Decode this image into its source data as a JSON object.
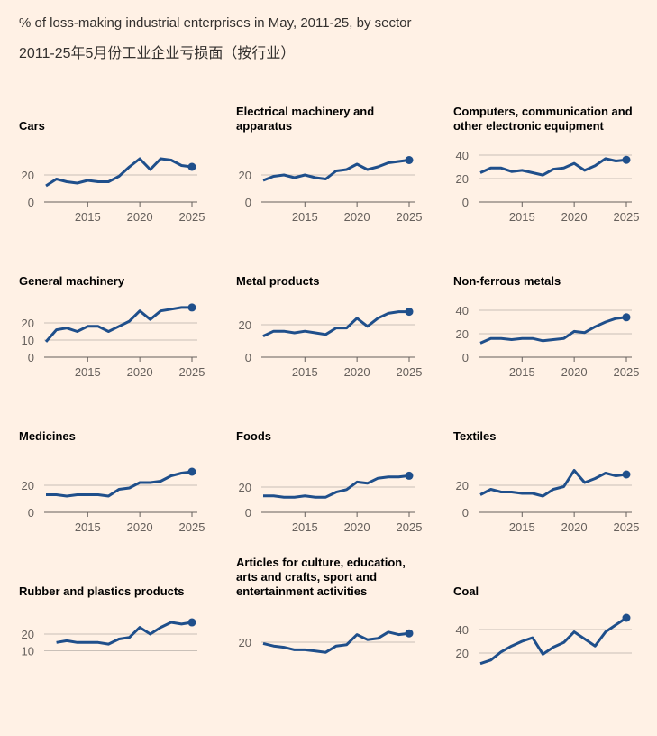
{
  "header": {
    "title": "% of loss-making industrial enterprises in May, 2011-25, by sector",
    "subtitle": "2011-25年5月份工业企业亏损面（按行业）"
  },
  "style": {
    "line_color": "#1f4f8b",
    "grid_color": "#c9c0b8",
    "background": "#fff1e5"
  },
  "chart_data": [
    {
      "type": "line",
      "title": "Cars",
      "x": [
        2011,
        2012,
        2013,
        2014,
        2015,
        2016,
        2017,
        2018,
        2019,
        2020,
        2021,
        2022,
        2023,
        2024,
        2025
      ],
      "y": [
        12,
        17,
        15,
        14,
        16,
        15,
        15,
        19,
        26,
        32,
        24,
        32,
        31,
        27,
        26
      ],
      "yticks": [
        0,
        20
      ],
      "xticks": [
        2015,
        2020,
        2025
      ]
    },
    {
      "type": "line",
      "title": "Electrical machinery and apparatus",
      "x": [
        2011,
        2012,
        2013,
        2014,
        2015,
        2016,
        2017,
        2018,
        2019,
        2020,
        2021,
        2022,
        2023,
        2024,
        2025
      ],
      "y": [
        16,
        19,
        20,
        18,
        20,
        18,
        17,
        23,
        24,
        28,
        24,
        26,
        29,
        30,
        31
      ],
      "yticks": [
        0,
        20
      ],
      "xticks": [
        2015,
        2020,
        2025
      ]
    },
    {
      "type": "line",
      "title": "Computers, communication and other electronic equipment",
      "x": [
        2011,
        2012,
        2013,
        2014,
        2015,
        2016,
        2017,
        2018,
        2019,
        2020,
        2021,
        2022,
        2023,
        2024,
        2025
      ],
      "y": [
        25,
        29,
        29,
        26,
        27,
        25,
        23,
        28,
        29,
        33,
        27,
        31,
        37,
        35,
        36
      ],
      "yticks": [
        0,
        20,
        40
      ],
      "xticks": [
        2015,
        2020,
        2025
      ]
    },
    {
      "type": "line",
      "title": "General machinery",
      "x": [
        2011,
        2012,
        2013,
        2014,
        2015,
        2016,
        2017,
        2018,
        2019,
        2020,
        2021,
        2022,
        2023,
        2024,
        2025
      ],
      "y": [
        9,
        16,
        17,
        15,
        18,
        18,
        15,
        18,
        21,
        27,
        22,
        27,
        28,
        29,
        29
      ],
      "yticks": [
        0,
        10,
        20
      ],
      "xticks": [
        2015,
        2020,
        2025
      ]
    },
    {
      "type": "line",
      "title": "Metal products",
      "x": [
        2011,
        2012,
        2013,
        2014,
        2015,
        2016,
        2017,
        2018,
        2019,
        2020,
        2021,
        2022,
        2023,
        2024,
        2025
      ],
      "y": [
        13,
        16,
        16,
        15,
        16,
        15,
        14,
        18,
        18,
        24,
        19,
        24,
        27,
        28,
        28
      ],
      "yticks": [
        0,
        20
      ],
      "xticks": [
        2015,
        2020,
        2025
      ]
    },
    {
      "type": "line",
      "title": "Non-ferrous metals",
      "x": [
        2011,
        2012,
        2013,
        2014,
        2015,
        2016,
        2017,
        2018,
        2019,
        2020,
        2021,
        2022,
        2023,
        2024,
        2025
      ],
      "y": [
        12,
        16,
        16,
        15,
        16,
        16,
        14,
        15,
        16,
        22,
        21,
        26,
        30,
        33,
        34
      ],
      "yticks": [
        0,
        20,
        40
      ],
      "xticks": [
        2015,
        2020,
        2025
      ]
    },
    {
      "type": "line",
      "title": "Medicines",
      "x": [
        2011,
        2012,
        2013,
        2014,
        2015,
        2016,
        2017,
        2018,
        2019,
        2020,
        2021,
        2022,
        2023,
        2024,
        2025
      ],
      "y": [
        13,
        13,
        12,
        13,
        13,
        13,
        12,
        17,
        18,
        22,
        22,
        23,
        27,
        29,
        30
      ],
      "yticks": [
        0,
        20
      ],
      "xticks": [
        2015,
        2020,
        2025
      ]
    },
    {
      "type": "line",
      "title": "Foods",
      "x": [
        2011,
        2012,
        2013,
        2014,
        2015,
        2016,
        2017,
        2018,
        2019,
        2020,
        2021,
        2022,
        2023,
        2024,
        2025
      ],
      "y": [
        13,
        13,
        12,
        12,
        13,
        12,
        12,
        16,
        18,
        24,
        23,
        27,
        28,
        28,
        29
      ],
      "yticks": [
        0,
        20
      ],
      "xticks": [
        2015,
        2020,
        2025
      ]
    },
    {
      "type": "line",
      "title": "Textiles",
      "x": [
        2011,
        2012,
        2013,
        2014,
        2015,
        2016,
        2017,
        2018,
        2019,
        2020,
        2021,
        2022,
        2023,
        2024,
        2025
      ],
      "y": [
        13,
        17,
        15,
        15,
        14,
        14,
        12,
        17,
        19,
        31,
        22,
        25,
        29,
        27,
        28
      ],
      "yticks": [
        0,
        20
      ],
      "xticks": [
        2015,
        2020,
        2025
      ]
    },
    {
      "type": "line",
      "title": "Rubber and plastics products",
      "x": [
        2012,
        2013,
        2014,
        2015,
        2016,
        2017,
        2018,
        2019,
        2020,
        2021,
        2022,
        2023,
        2024,
        2025
      ],
      "y": [
        15,
        16,
        15,
        15,
        15,
        14,
        17,
        18,
        24,
        20,
        24,
        27,
        26,
        27
      ],
      "yticks": [
        10,
        20
      ],
      "xticks": []
    },
    {
      "type": "line",
      "title": "Articles for culture, education, arts and crafts, sport and entertainment activities",
      "x": [
        2011,
        2012,
        2013,
        2014,
        2015,
        2016,
        2017,
        2018,
        2019,
        2020,
        2021,
        2022,
        2023,
        2024,
        2025
      ],
      "y": [
        19,
        17,
        16,
        14,
        14,
        13,
        12,
        17,
        18,
        26,
        22,
        23,
        28,
        26,
        27
      ],
      "yticks": [
        20
      ],
      "xticks": []
    },
    {
      "type": "line",
      "title": "Coal",
      "x": [
        2011,
        2012,
        2013,
        2014,
        2015,
        2016,
        2017,
        2018,
        2019,
        2020,
        2021,
        2022,
        2023,
        2024,
        2025
      ],
      "y": [
        11,
        14,
        21,
        26,
        30,
        33,
        19,
        25,
        29,
        38,
        32,
        26,
        38,
        44,
        50
      ],
      "yticks": [
        20,
        40
      ],
      "xticks": []
    }
  ]
}
